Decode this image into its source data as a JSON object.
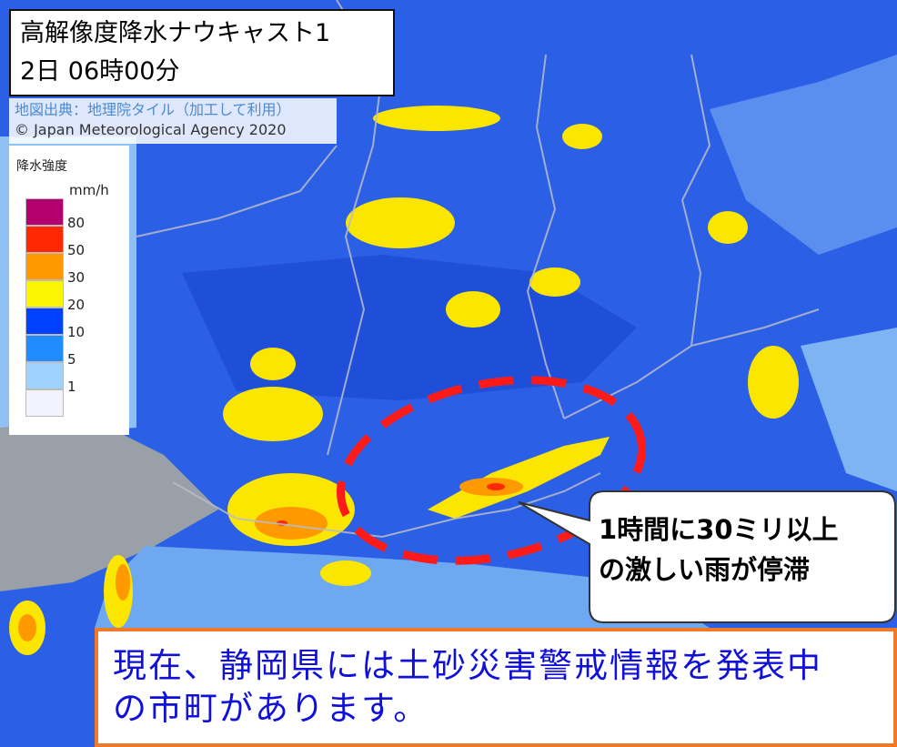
{
  "title": {
    "line1": "高解像度降水ナウキャスト1",
    "line2": "2日 06時00分"
  },
  "credit": {
    "source": "地図出典：地理院タイル（加工して利用）",
    "copyright": "© Japan Meteorological Agency 2020"
  },
  "legend": {
    "title": "降水強度",
    "unit": "mm/h",
    "items": [
      {
        "label": "80",
        "color": "#b4006e"
      },
      {
        "label": "50",
        "color": "#ff2800"
      },
      {
        "label": "30",
        "color": "#ff9900"
      },
      {
        "label": "20",
        "color": "#faf500"
      },
      {
        "label": "10",
        "color": "#0041ff"
      },
      {
        "label": "5",
        "color": "#218cff"
      },
      {
        "label": "1",
        "color": "#a0d2ff"
      },
      {
        "label": "",
        "color": "#f2f2ff"
      }
    ]
  },
  "callout": {
    "line1": "1時間に30ミリ以上",
    "line2": "の激しい雨が停滞"
  },
  "alert": {
    "line1": "現在、静岡県には土砂災害警戒情報を発表中",
    "line2": "の市町があります。",
    "text_color": "#1010d8",
    "border_color": "#ee7a2a"
  }
}
